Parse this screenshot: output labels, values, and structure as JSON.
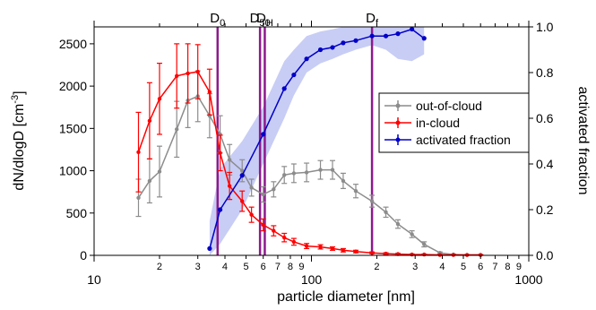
{
  "chart_data": {
    "type": "line",
    "xlabel": "particle diameter [nm]",
    "ylabel_left": "dN/dlogD [cm-3]",
    "ylabel_left_base": "dN/dlogD [cm",
    "ylabel_left_sup": "-3",
    "ylabel_left_tail": "]",
    "ylabel_right": "activated fraction",
    "x_scale": "log",
    "xlim": [
      10,
      1000
    ],
    "ylim_left": [
      0,
      2700
    ],
    "ylim_right": [
      0,
      1.0
    ],
    "x_major_ticks": [
      10,
      100,
      1000
    ],
    "x_major_labels": [
      "10",
      "100",
      "1000"
    ],
    "x_minor_ticks": [
      20,
      30,
      40,
      50,
      60,
      70,
      80,
      90,
      200,
      300,
      400,
      500,
      600,
      700,
      800,
      900
    ],
    "x_minor_labels": [
      "2",
      "3",
      "4",
      "5",
      "6",
      "7",
      "8",
      "9",
      "2",
      "3",
      "4",
      "5",
      "6",
      "7",
      "8",
      "9"
    ],
    "y_left_ticks": [
      0,
      500,
      1000,
      1500,
      2000,
      2500
    ],
    "y_left_labels": [
      "0",
      "500",
      "1000",
      "1500",
      "2000",
      "2500"
    ],
    "y_right_ticks": [
      0,
      0.2,
      0.4,
      0.6,
      0.8,
      1.0
    ],
    "y_right_labels": [
      "0.0",
      "0.2",
      "0.4",
      "0.6",
      "0.8",
      "1.0"
    ],
    "grid": false,
    "legend_position": "right-center",
    "colors": {
      "out_of_cloud": "#8c8c8c",
      "in_cloud": "#ff0000",
      "activated": "#0000c8",
      "band": "#c8cdf5",
      "markers": "#8c1a8c"
    },
    "vertical_markers": [
      {
        "base": "D",
        "sub": "0",
        "x": 37
      },
      {
        "base": "D",
        "sub": "50",
        "x": 58
      },
      {
        "base": "D",
        "sub": "H",
        "x": 61
      },
      {
        "base": "D",
        "sub": "f",
        "x": 190
      }
    ],
    "series": [
      {
        "name": "out-of-cloud",
        "axis": "left",
        "x": [
          16,
          18,
          20,
          24,
          27,
          30,
          34,
          38,
          42,
          48,
          53,
          60,
          67,
          75,
          83,
          95,
          110,
          125,
          140,
          160,
          190,
          220,
          250,
          290,
          330,
          390,
          450,
          520,
          600
        ],
        "y": [
          680,
          880,
          990,
          1490,
          1830,
          1880,
          1650,
          1430,
          1130,
          1000,
          800,
          720,
          780,
          950,
          970,
          980,
          1010,
          1010,
          880,
          760,
          640,
          510,
          370,
          250,
          130,
          30,
          10,
          5,
          5
        ],
        "err": [
          220,
          260,
          300,
          330,
          320,
          300,
          260,
          220,
          180,
          130,
          100,
          90,
          90,
          100,
          110,
          110,
          110,
          110,
          90,
          80,
          70,
          60,
          50,
          40,
          30,
          10,
          5,
          5,
          5
        ]
      },
      {
        "name": "in-cloud",
        "axis": "left",
        "x": [
          16,
          18,
          20,
          24,
          27,
          30,
          34,
          38,
          42,
          48,
          53,
          60,
          67,
          75,
          83,
          95,
          110,
          125,
          140,
          160,
          190,
          220,
          250,
          290,
          330,
          390,
          450,
          520,
          600
        ],
        "y": [
          1220,
          1590,
          1850,
          2120,
          2150,
          2170,
          1930,
          1210,
          820,
          640,
          480,
          360,
          290,
          210,
          160,
          110,
          100,
          80,
          60,
          45,
          30,
          20,
          15,
          10,
          10,
          5,
          5,
          5,
          5
        ],
        "err": [
          470,
          450,
          420,
          380,
          350,
          320,
          270,
          210,
          160,
          120,
          90,
          70,
          60,
          50,
          40,
          30,
          25,
          20,
          20,
          15,
          10,
          10,
          8,
          6,
          5,
          4,
          3,
          3,
          3
        ]
      },
      {
        "name": "activated fraction",
        "axis": "right",
        "x": [
          34,
          38,
          48,
          60,
          75,
          83,
          95,
          110,
          125,
          140,
          160,
          190,
          220,
          250,
          290,
          330
        ],
        "y": [
          0.03,
          0.2,
          0.35,
          0.53,
          0.73,
          0.79,
          0.86,
          0.9,
          0.91,
          0.93,
          0.94,
          0.96,
          0.96,
          0.97,
          0.99,
          0.95
        ],
        "band_low": [
          0.0,
          0.05,
          0.2,
          0.4,
          0.6,
          0.7,
          0.8,
          0.84,
          0.86,
          0.88,
          0.9,
          0.92,
          0.9,
          0.86,
          0.85,
          0.88
        ],
        "band_high": [
          0.15,
          0.38,
          0.5,
          0.65,
          0.85,
          0.9,
          0.96,
          0.98,
          0.99,
          1.0,
          1.0,
          1.0,
          1.0,
          1.0,
          1.0,
          1.0
        ]
      }
    ]
  }
}
